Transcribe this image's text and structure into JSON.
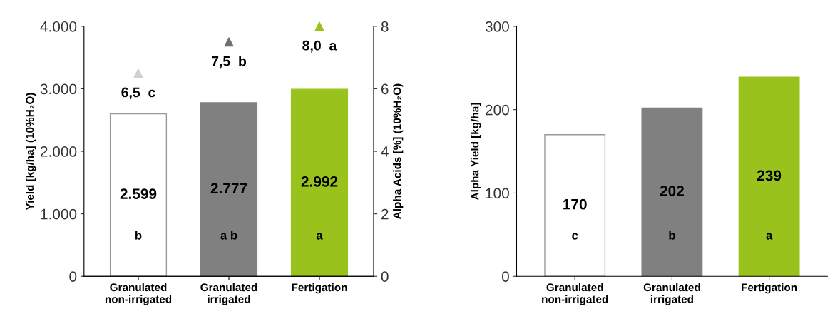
{
  "chart_data": [
    {
      "type": "bar",
      "categories": [
        "Granulated\nnon-irrigated",
        "Granulated\nirrigated",
        "Fertigation"
      ],
      "ylabel": "Yield [kg/ha] (10%H₂O)",
      "y2label": "Alpha Acids [%] (10%H₂O)",
      "ylim": [
        0,
        4000
      ],
      "yticks": [
        {
          "value": 0,
          "label": "0"
        },
        {
          "value": 1000,
          "label": "1.000"
        },
        {
          "value": 2000,
          "label": "2.000"
        },
        {
          "value": 3000,
          "label": "3.000"
        },
        {
          "value": 4000,
          "label": "4.000"
        }
      ],
      "y2lim": [
        0,
        8
      ],
      "y2ticks": [
        0,
        2,
        4,
        6,
        8
      ],
      "grid": false,
      "legend": false,
      "series": [
        {
          "colors": [
            "#ffffff",
            "#808080",
            "#99c31c"
          ],
          "values": [
            2599,
            2777,
            2992
          ],
          "value_labels": [
            "2.599",
            "2.777",
            "2.992"
          ]
        },
        {
          "type": "scatter",
          "axis": "y2",
          "marker": "triangle",
          "colors": [
            "#d0d0d0",
            "#707070",
            "#99c31c"
          ],
          "values": [
            6.5,
            7.5,
            8.0
          ],
          "value_labels": [
            "6,5  c",
            "7,5  b",
            "8,0  a"
          ]
        }
      ],
      "annotations": [
        "b",
        "a b",
        "a"
      ]
    },
    {
      "type": "bar",
      "categories": [
        "Granulated\nnon-irrigated",
        "Granulated\nirrigated",
        "Fertigation"
      ],
      "ylabel": "Alpha Yield [kg/ha]",
      "ylim": [
        0,
        300
      ],
      "yticks": [
        0,
        100,
        200,
        300
      ],
      "grid": false,
      "legend": false,
      "series": [
        {
          "colors": [
            "#ffffff",
            "#808080",
            "#99c31c"
          ],
          "values": [
            170,
            202,
            239
          ],
          "value_labels": [
            "170",
            "202",
            "239"
          ]
        }
      ],
      "annotations": [
        "c",
        "b",
        "a"
      ]
    }
  ]
}
